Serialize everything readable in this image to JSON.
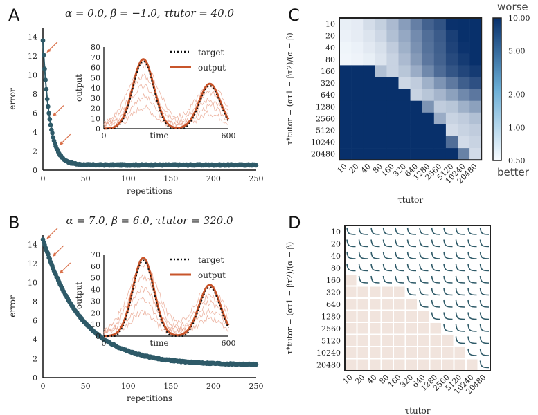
{
  "panel_labels": [
    "A",
    "B",
    "C",
    "D"
  ],
  "chart_data": [
    {
      "id": "A",
      "type": "scatter",
      "title": "α = 0.0,  β = −1.0,  τtutor = 40.0",
      "xlabel": "repetitions",
      "ylabel": "error",
      "xlim": [
        0,
        250
      ],
      "ylim": [
        0,
        15
      ],
      "xticks": [
        0,
        50,
        100,
        150,
        200,
        250
      ],
      "yticks": [
        0,
        2,
        4,
        6,
        8,
        10,
        12,
        14
      ],
      "curve": {
        "start": 13.6,
        "plateau": 0.55,
        "tau": 8
      },
      "arrows_at": [
        1,
        8,
        16
      ],
      "inset": {
        "xlabel": "time",
        "ylabel": "output",
        "xlim": [
          0,
          600
        ],
        "ylim": [
          0,
          80
        ],
        "xticks": [
          0,
          600
        ],
        "yticks": [
          0,
          10,
          20,
          30,
          40,
          50,
          60,
          70,
          80
        ],
        "legend": [
          "target",
          "output"
        ],
        "peaks": [
          {
            "center": 190,
            "height": 68
          },
          {
            "center": 510,
            "height": 44
          }
        ]
      }
    },
    {
      "id": "B",
      "type": "scatter",
      "title": "α = 7.0,  β = 6.0,  τtutor = 320.0",
      "xlabel": "repetitions",
      "ylabel": "error",
      "xlim": [
        0,
        250
      ],
      "ylim": [
        0,
        15
      ],
      "xticks": [
        0,
        50,
        100,
        150,
        200,
        250
      ],
      "yticks": [
        0,
        2,
        4,
        6,
        8,
        10,
        12,
        14
      ],
      "curve": {
        "start": 14.6,
        "plateau": 1.35,
        "tau": 45
      },
      "arrows_at": [
        1,
        8,
        16
      ],
      "inset": {
        "xlabel": "time",
        "ylabel": "output",
        "xlim": [
          0,
          600
        ],
        "ylim": [
          0,
          70
        ],
        "xticks": [
          0,
          600
        ],
        "yticks": [
          0,
          10,
          20,
          30,
          40,
          50,
          60,
          70
        ],
        "legend": [
          "target",
          "output"
        ],
        "peaks": [
          {
            "center": 190,
            "height": 67
          },
          {
            "center": 510,
            "height": 44
          }
        ]
      }
    },
    {
      "id": "C",
      "type": "heatmap",
      "xlabel": "τtutor",
      "ylabel": "τ*tutor = (ατ1 − βτ2)/(α − β)",
      "categories": [
        "10",
        "20",
        "40",
        "80",
        "160",
        "320",
        "640",
        "1280",
        "2560",
        "5120",
        "10240",
        "20480"
      ],
      "colorbar": {
        "ticks": [
          0.5,
          1.0,
          2.0,
          5.0,
          10.0
        ],
        "tick_labels": [
          "0.50",
          "1.00",
          "2.00",
          "5.00",
          "10.00"
        ],
        "top_label": "worse",
        "bottom_label": "better",
        "scale": "log"
      },
      "values": [
        [
          0.6,
          0.63,
          0.78,
          0.95,
          1.3,
          2.0,
          3.1,
          4.8,
          6.0,
          9.8,
          10.0,
          10.0
        ],
        [
          0.58,
          0.62,
          0.7,
          0.85,
          1.2,
          1.7,
          2.6,
          4.0,
          5.3,
          8.0,
          10.0,
          10.0
        ],
        [
          0.55,
          0.58,
          0.65,
          0.75,
          1.0,
          1.5,
          2.4,
          3.8,
          5.0,
          7.5,
          9.5,
          10.0
        ],
        [
          0.54,
          0.56,
          0.6,
          0.7,
          0.9,
          1.3,
          2.1,
          3.5,
          4.8,
          6.8,
          8.5,
          10.0
        ],
        [
          10.0,
          10.0,
          10.0,
          1.2,
          0.9,
          1.1,
          1.6,
          2.7,
          4.2,
          5.8,
          7.2,
          8.5
        ],
        [
          10.0,
          10.0,
          10.0,
          10.0,
          10.0,
          0.85,
          1.0,
          1.5,
          2.3,
          3.4,
          5.0,
          6.2
        ],
        [
          10.0,
          10.0,
          10.0,
          10.0,
          10.0,
          10.0,
          0.9,
          1.1,
          1.4,
          1.9,
          2.7,
          3.5
        ],
        [
          10.0,
          10.0,
          10.0,
          10.0,
          10.0,
          10.0,
          10.0,
          2.3,
          1.0,
          1.1,
          1.5,
          1.9
        ],
        [
          10.0,
          10.0,
          10.0,
          10.0,
          10.0,
          10.0,
          10.0,
          10.0,
          1.6,
          0.9,
          1.0,
          1.2
        ],
        [
          10.0,
          10.0,
          10.0,
          10.0,
          10.0,
          10.0,
          10.0,
          10.0,
          10.0,
          0.8,
          0.9,
          1.0
        ],
        [
          10.0,
          10.0,
          10.0,
          10.0,
          10.0,
          10.0,
          10.0,
          10.0,
          10.0,
          4.0,
          0.8,
          0.9
        ],
        [
          10.0,
          10.0,
          10.0,
          10.0,
          10.0,
          10.0,
          10.0,
          10.0,
          10.0,
          10.0,
          3.0,
          0.8
        ]
      ]
    },
    {
      "id": "D",
      "type": "table",
      "xlabel": "τtutor",
      "ylabel": "τ*tutor = (ατ1 − βτ2)/(α − β)",
      "categories": [
        "10",
        "20",
        "40",
        "80",
        "160",
        "320",
        "640",
        "1280",
        "2560",
        "5120",
        "10240",
        "20480"
      ],
      "diverged_counts_per_row": [
        0,
        0,
        0,
        0,
        1,
        5,
        6,
        7,
        8,
        9,
        10,
        11
      ],
      "shaded_color": "#f1e4dd"
    }
  ],
  "colors": {
    "scatter": "#2e5a68",
    "arrow": "#d9704a",
    "output": "#c8552b",
    "target": "#111111",
    "trace": "#e8a38c",
    "heat_low": "#f7fbff",
    "heat_high": "#08306b"
  }
}
